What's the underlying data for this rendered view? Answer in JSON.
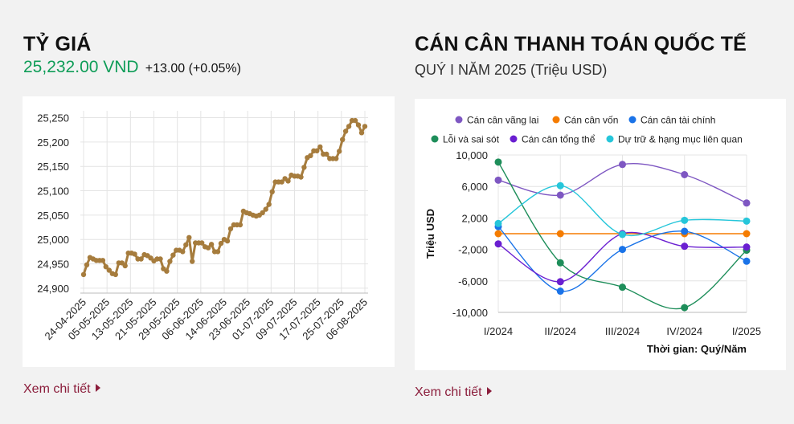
{
  "left_panel": {
    "title": "TỶ GIÁ",
    "rate_value": "25,232.00 VND",
    "rate_change": "+13.00 (+0.05%)",
    "more_link": "Xem chi tiết"
  },
  "right_panel": {
    "title": "CÁN CÂN THANH TOÁN QUỐC TẾ",
    "subtitle": "QUÝ I NĂM 2025 (Triệu USD)",
    "more_link": "Xem chi tiết"
  },
  "chart_data": [
    {
      "type": "line",
      "series": [
        {
          "color": "#a67c3d",
          "values": [
            24928,
            24948,
            24963,
            24960,
            24957,
            24957,
            24957,
            24944,
            24937,
            24930,
            24928,
            24952,
            24952,
            24946,
            24972,
            24972,
            24970,
            24960,
            24960,
            24969,
            24967,
            24962,
            24956,
            24960,
            24960,
            24940,
            24935,
            24955,
            24968,
            24978,
            24978,
            24975,
            24989,
            25004,
            24955,
            24993,
            24993,
            24993,
            24985,
            24983,
            24990,
            24975,
            24975,
            24992,
            25000,
            24997,
            25022,
            25030,
            25030,
            25030,
            25058,
            25055,
            25053,
            25050,
            25048,
            25050,
            25055,
            25062,
            25072,
            25098,
            25118,
            25118,
            25118,
            25125,
            25120,
            25132,
            25130,
            25130,
            25128,
            25148,
            25168,
            25172,
            25182,
            25182,
            25190,
            25175,
            25175,
            25166,
            25166,
            25166,
            25181,
            25205,
            25222,
            25232,
            25244,
            25244,
            25235,
            25219,
            25232
          ]
        }
      ],
      "x_tick_labels": [
        "24-04-2025",
        "05-05-2025",
        "13-05-2025",
        "21-05-2025",
        "29-05-2025",
        "06-06-2025",
        "14-06-2025",
        "23-06-2025",
        "01-07-2025",
        "09-07-2025",
        "17-07-2025",
        "25-07-2025",
        "06-08-2025"
      ],
      "y_tick_labels": [
        "25,250",
        "25,200",
        "25,150",
        "25,100",
        "25,050",
        "25,000",
        "24,950",
        "24,900"
      ],
      "y_ticks": [
        25250,
        25200,
        25150,
        25100,
        25050,
        25000,
        24950,
        24900
      ],
      "ylim": [
        24890,
        25264
      ],
      "grid": true
    },
    {
      "type": "line",
      "categories": [
        "I/2024",
        "II/2024",
        "III/2024",
        "IV/2024",
        "I/2025"
      ],
      "series": [
        {
          "name": "Cán cân vãng lai",
          "color": "#7e57c2",
          "values": [
            6800,
            4900,
            8800,
            7500,
            3900
          ]
        },
        {
          "name": "Cán cân vốn",
          "color": "#f57c00",
          "values": [
            0,
            0,
            0,
            0,
            0
          ]
        },
        {
          "name": "Cán cân tài chính",
          "color": "#1a73e8",
          "values": [
            900,
            -7300,
            -2000,
            300,
            -3500
          ]
        },
        {
          "name": "Lỗi và sai sót",
          "color": "#1e8e5a",
          "values": [
            9100,
            -3700,
            -6800,
            -9400,
            -2100
          ]
        },
        {
          "name": "Cán cân tổng thể",
          "color": "#6a1fd1",
          "values": [
            -1300,
            -6100,
            0,
            -1600,
            -1700
          ]
        },
        {
          "name": "Dự trữ & hạng mục liên quan",
          "color": "#26c6da",
          "values": [
            1300,
            6100,
            -100,
            1700,
            1600
          ]
        }
      ],
      "ylabel": "Triệu USD",
      "xlabel": "Thời gian: Quý/Năm",
      "y_tick_labels": [
        "10,000",
        "6,000",
        "2,000",
        "-2,000",
        "-6,000",
        "-10,000"
      ],
      "y_ticks": [
        10000,
        6000,
        2000,
        -2000,
        -6000,
        -10000
      ],
      "ylim": [
        -10000,
        10000
      ],
      "legend_position": "top",
      "grid": true
    }
  ]
}
